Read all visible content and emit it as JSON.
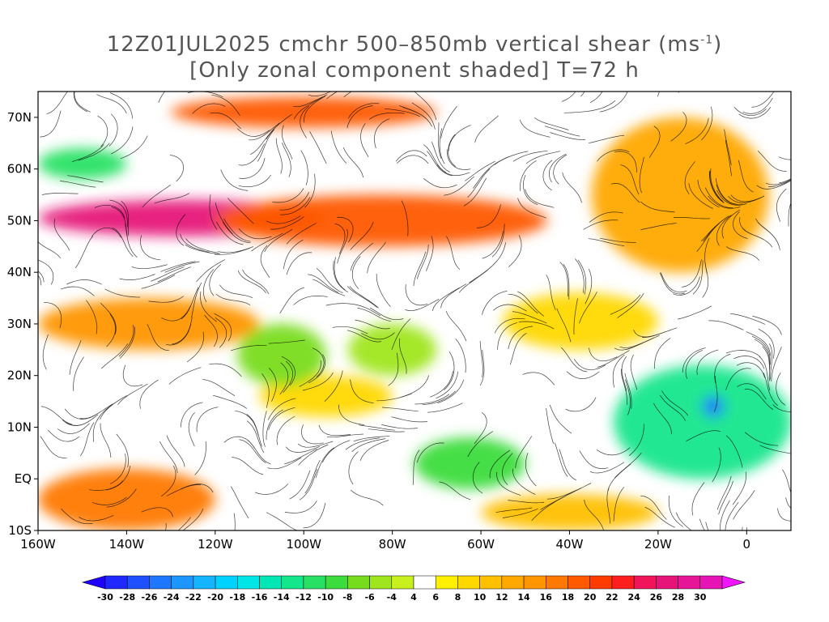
{
  "title": {
    "line1_prefix": "12Z01JUL2025 cmchr 500–850mb vertical shear (ms",
    "line1_sup": "-1",
    "line1_suffix": ")",
    "line2": "[Only zonal component shaded] T=72 h"
  },
  "map": {
    "projection": "lat-lon",
    "lon_range": [
      -160,
      10
    ],
    "lat_range": [
      -10,
      75
    ],
    "lat_ticks": [
      {
        "value": 70,
        "label": "70N"
      },
      {
        "value": 60,
        "label": "60N"
      },
      {
        "value": 50,
        "label": "50N"
      },
      {
        "value": 40,
        "label": "40N"
      },
      {
        "value": 30,
        "label": "30N"
      },
      {
        "value": 20,
        "label": "20N"
      },
      {
        "value": 10,
        "label": "10N"
      },
      {
        "value": 0,
        "label": "EQ"
      },
      {
        "value": -10,
        "label": "10S"
      }
    ],
    "lon_ticks": [
      {
        "value": -160,
        "label": "160W"
      },
      {
        "value": -140,
        "label": "140W"
      },
      {
        "value": -120,
        "label": "120W"
      },
      {
        "value": -100,
        "label": "100W"
      },
      {
        "value": -80,
        "label": "80W"
      },
      {
        "value": -60,
        "label": "60W"
      },
      {
        "value": -40,
        "label": "40W"
      },
      {
        "value": -20,
        "label": "20W"
      },
      {
        "value": 0,
        "label": "0"
      }
    ],
    "shaded_regions": [
      {
        "name": "north-pacific-jet",
        "lon": [
          -160,
          -95
        ],
        "lat": [
          47,
          54
        ],
        "value": 26
      },
      {
        "name": "north-america-jet",
        "lon": [
          -120,
          -45
        ],
        "lat": [
          45,
          55
        ],
        "value": 18
      },
      {
        "name": "arctic-jet",
        "lon": [
          -130,
          -70
        ],
        "lat": [
          68,
          74
        ],
        "value": 18
      },
      {
        "name": "north-atlantic-band",
        "lon": [
          -35,
          5
        ],
        "lat": [
          40,
          70
        ],
        "value": 12
      },
      {
        "name": "subtropical-pacific",
        "lon": [
          -160,
          -110
        ],
        "lat": [
          25,
          35
        ],
        "value": 14
      },
      {
        "name": "mid-pacific",
        "lon": [
          -110,
          -80
        ],
        "lat": [
          12,
          20
        ],
        "value": 8
      },
      {
        "name": "atlantic-subtropics",
        "lon": [
          -55,
          -20
        ],
        "lat": [
          25,
          36
        ],
        "value": 8
      },
      {
        "name": "south-pacific",
        "lon": [
          -160,
          -120
        ],
        "lat": [
          -10,
          2
        ],
        "value": 16
      },
      {
        "name": "south-atlantic",
        "lon": [
          -60,
          -20
        ],
        "lat": [
          -10,
          -3
        ],
        "value": 10
      },
      {
        "name": "east-atlantic-easterly",
        "lon": [
          -30,
          10
        ],
        "lat": [
          0,
          22
        ],
        "value": -14
      },
      {
        "name": "tropical-atlantic-easterly",
        "lon": [
          -75,
          -50
        ],
        "lat": [
          -2,
          8
        ],
        "value": -10
      },
      {
        "name": "caribbean-easterly",
        "lon": [
          -115,
          -95
        ],
        "lat": [
          18,
          30
        ],
        "value": -8
      },
      {
        "name": "gulf-easterly",
        "lon": [
          -90,
          -70
        ],
        "lat": [
          20,
          30
        ],
        "value": -6
      },
      {
        "name": "pacific-northwest-easterly",
        "lon": [
          -160,
          -140
        ],
        "lat": [
          58,
          64
        ],
        "value": -12
      },
      {
        "name": "africa-core",
        "lon": [
          -10,
          -5
        ],
        "lat": [
          12,
          16
        ],
        "value": -26
      }
    ]
  },
  "colorbar": {
    "labels": [
      "-30",
      "-28",
      "-26",
      "-24",
      "-22",
      "-20",
      "-18",
      "-16",
      "-14",
      "-12",
      "-10",
      "-8",
      "-6",
      "-4",
      "4",
      "6",
      "8",
      "10",
      "12",
      "14",
      "16",
      "18",
      "20",
      "22",
      "24",
      "26",
      "28",
      "30"
    ],
    "colors": [
      "#1e28ff",
      "#1e50ff",
      "#1e78ff",
      "#1e96ff",
      "#14b4ff",
      "#00d2ff",
      "#00e6e6",
      "#00e6b4",
      "#14e68c",
      "#28e164",
      "#3cdc3c",
      "#78dc1e",
      "#a0e61e",
      "#c8f01e",
      "#ffffff",
      "#fff000",
      "#ffd800",
      "#ffc000",
      "#ffa800",
      "#ff9600",
      "#ff7800",
      "#ff5a00",
      "#ff3c00",
      "#ff1e1e",
      "#f0145a",
      "#e61478",
      "#e61496",
      "#e614b4"
    ],
    "low_arrow_color": "#1e00ff",
    "high_arrow_color": "#f014ff"
  }
}
